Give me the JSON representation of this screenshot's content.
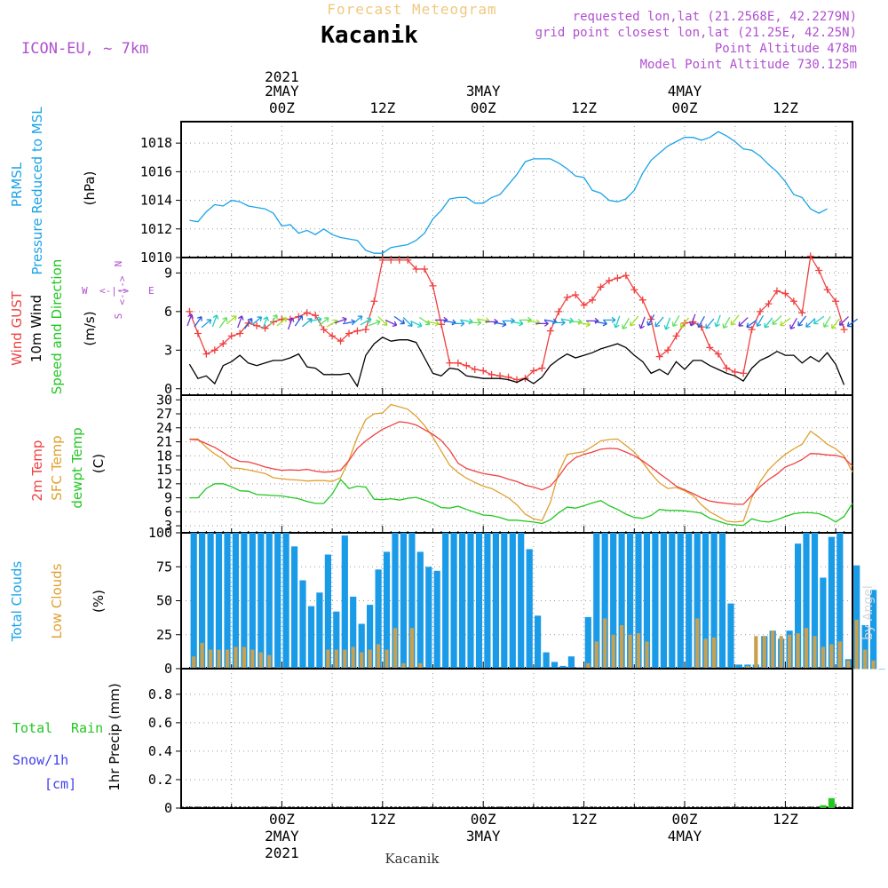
{
  "header": {
    "title": "Forecast Meteogram",
    "location": "Kacanik",
    "model": "ICON-EU, ~ 7km",
    "requested": "requested lon,lat (21.2568E, 42.2279N)",
    "gridpoint": "grid point closest lon,lat (21.25E, 42.25N)",
    "point_alt": "Point Altitude 478m",
    "model_alt": "Model Point Altitude 730.125m",
    "footer": "Kacanik",
    "credit": "by Angel"
  },
  "time_axis": {
    "top_ticks": [
      {
        "hour": 0,
        "label": "00Z",
        "date": "2MAY",
        "year": "2021"
      },
      {
        "hour": 12,
        "label": "12Z",
        "date": "",
        "year": ""
      },
      {
        "hour": 24,
        "label": "00Z",
        "date": "3MAY",
        "year": ""
      },
      {
        "hour": 36,
        "label": "12Z",
        "date": "",
        "year": ""
      },
      {
        "hour": 48,
        "label": "00Z",
        "date": "4MAY",
        "year": ""
      },
      {
        "hour": 60,
        "label": "12Z",
        "date": "",
        "year": ""
      }
    ],
    "bottom_ticks": [
      {
        "hour": 0,
        "label": "00Z",
        "date": "2MAY",
        "year": "2021"
      },
      {
        "hour": 12,
        "label": "12Z",
        "date": "",
        "year": ""
      },
      {
        "hour": 24,
        "label": "00Z",
        "date": "3MAY",
        "year": ""
      },
      {
        "hour": 36,
        "label": "12Z",
        "date": "",
        "year": ""
      },
      {
        "hour": 48,
        "label": "00Z",
        "date": "4MAY",
        "year": ""
      },
      {
        "hour": 60,
        "label": "12Z",
        "date": "",
        "year": ""
      }
    ]
  },
  "colors": {
    "pressure": "#1aa3e8",
    "gust": "#f04040",
    "wind": "#000000",
    "temp": "#f04040",
    "sfc": "#e0a030",
    "dewpt": "#20c820",
    "cloud_total": "#1a9be8",
    "cloud_low": "#c8a050",
    "rain": "#20c820",
    "snow": "#4040f0",
    "purple": "#b050d0",
    "title": "#f0c880"
  },
  "chart_data": [
    {
      "type": "line",
      "name": "PRMSL",
      "ylabel_lines": [
        "PRMSL",
        "Pressure Reduced to MSL"
      ],
      "unit": "(hPa)",
      "ylim": [
        1010,
        1019.5
      ],
      "yticks": [
        1010,
        1012,
        1014,
        1016,
        1018
      ],
      "x_start": -11,
      "x_step": 1,
      "series": [
        {
          "name": "PRMSL",
          "values": [
            1012.6,
            1012.5,
            1013.2,
            1013.7,
            1013.6,
            1014.0,
            1013.9,
            1013.6,
            1013.5,
            1013.4,
            1013.1,
            1012.2,
            1012.3,
            1011.7,
            1011.9,
            1011.6,
            1012.0,
            1011.6,
            1011.4,
            1011.3,
            1011.2,
            1010.5,
            1010.3,
            1010.3,
            1010.7,
            1010.8,
            1010.9,
            1011.2,
            1011.7,
            1012.7,
            1013.3,
            1014.1,
            1014.2,
            1014.2,
            1013.8,
            1013.8,
            1014.2,
            1014.4,
            1015.1,
            1015.8,
            1016.7,
            1016.9,
            1016.9,
            1016.9,
            1016.6,
            1016.2,
            1015.7,
            1015.6,
            1014.7,
            1014.5,
            1014.0,
            1013.9,
            1014.1,
            1014.7,
            1015.9,
            1016.8,
            1017.3,
            1017.8,
            1018.1,
            1018.4,
            1018.4,
            1018.2,
            1018.4,
            1018.8,
            1018.5,
            1018.1,
            1017.6,
            1017.5,
            1017.1,
            1016.5,
            1016.0,
            1015.3,
            1014.4,
            1014.2,
            1013.4,
            1013.1,
            1013.4
          ]
        }
      ]
    },
    {
      "type": "line",
      "name": "Wind",
      "ylabel_lines": [
        "Wind GUST",
        "10m Wind",
        "Speed and Direction"
      ],
      "unit": "(m/s)",
      "compass": {
        "w": "W",
        "e": "E",
        "n": "N",
        "s": "S"
      },
      "ylim": [
        -0.5,
        10.2
      ],
      "yticks": [
        0,
        3,
        6,
        9
      ],
      "x_start": -11,
      "x_step": 1,
      "series": [
        {
          "name": "Wind GUST",
          "values": [
            6.0,
            4.3,
            2.7,
            3.0,
            3.5,
            4.1,
            4.3,
            5.1,
            4.9,
            4.7,
            5.2,
            5.4,
            5.4,
            5.6,
            5.9,
            5.7,
            4.6,
            4.1,
            3.7,
            4.3,
            4.5,
            4.6,
            6.8,
            10.0,
            10.0,
            10.0,
            10.0,
            9.3,
            9.3,
            8.0,
            5.0,
            2.0,
            2.0,
            1.8,
            1.5,
            1.4,
            1.1,
            1.0,
            0.9,
            0.7,
            0.8,
            1.4,
            1.6,
            4.5,
            6.0,
            7.1,
            7.3,
            6.5,
            6.9,
            7.9,
            8.4,
            8.6,
            8.8,
            7.7,
            6.9,
            5.4,
            2.5,
            3.0,
            4.1,
            5.1,
            5.2,
            4.8,
            3.2,
            2.7,
            1.6,
            1.3,
            1.2,
            4.6,
            6.0,
            6.6,
            7.6,
            7.4,
            6.8,
            5.9,
            10.3,
            9.2,
            7.7,
            6.8,
            4.6
          ]
        },
        {
          "name": "10m Wind",
          "values": [
            1.9,
            0.8,
            1.0,
            0.4,
            1.8,
            2.1,
            2.6,
            2.0,
            1.8,
            2.0,
            2.2,
            2.2,
            2.4,
            2.7,
            1.7,
            1.6,
            1.1,
            1.1,
            1.1,
            1.2,
            0.2,
            2.6,
            3.5,
            4.0,
            3.7,
            3.8,
            3.8,
            3.6,
            2.4,
            1.2,
            1.0,
            1.6,
            1.5,
            1.0,
            0.9,
            0.8,
            0.8,
            0.8,
            0.7,
            0.5,
            0.8,
            0.4,
            0.9,
            1.8,
            2.3,
            2.7,
            2.4,
            2.6,
            2.8,
            3.1,
            3.3,
            3.5,
            3.2,
            2.6,
            2.1,
            1.2,
            1.5,
            1.1,
            2.1,
            1.5,
            2.2,
            2.2,
            1.8,
            1.5,
            1.2,
            1.0,
            0.6,
            1.6,
            2.2,
            2.5,
            2.9,
            2.6,
            2.6,
            2.0,
            2.5,
            2.1,
            2.8,
            1.9,
            0.3
          ]
        }
      ]
    },
    {
      "type": "line",
      "name": "Temperature",
      "ylabel_lines": [
        "2m Temp",
        "SFC Temp",
        "dewpt Temp"
      ],
      "unit": "(C)",
      "ylim": [
        1.5,
        31
      ],
      "yticks": [
        3,
        6,
        9,
        12,
        15,
        18,
        21,
        24,
        27,
        30
      ],
      "x_start": -11,
      "x_step": 1,
      "series": [
        {
          "name": "2m Temp",
          "values": [
            21.5,
            21.4,
            20.6,
            19.8,
            18.7,
            17.6,
            16.8,
            16.7,
            16.2,
            15.6,
            15.2,
            14.9,
            15.0,
            14.9,
            15.1,
            14.7,
            14.5,
            14.6,
            14.9,
            17.0,
            19.6,
            21.2,
            22.5,
            23.7,
            24.5,
            25.3,
            25.1,
            24.6,
            23.6,
            22.6,
            21.3,
            19.2,
            16.4,
            15.3,
            14.7,
            14.2,
            13.9,
            13.6,
            13.0,
            12.5,
            11.7,
            11.3,
            10.7,
            11.5,
            13.6,
            16.1,
            17.6,
            18.3,
            18.8,
            19.4,
            19.6,
            19.5,
            18.8,
            18.0,
            16.9,
            15.6,
            14.2,
            12.9,
            11.5,
            10.7,
            9.9,
            9.0,
            8.3,
            8.0,
            7.8,
            7.6,
            7.6,
            9.5,
            11.4,
            12.9,
            14.1,
            15.6,
            16.3,
            17.2,
            18.5,
            18.4,
            18.2,
            18.1,
            17.6,
            15.8
          ]
        },
        {
          "name": "SFC Temp",
          "values": [
            21.6,
            21.6,
            19.8,
            18.4,
            17.3,
            15.4,
            15.3,
            15.0,
            14.6,
            14.2,
            13.3,
            13.1,
            12.9,
            12.8,
            12.6,
            12.7,
            12.7,
            12.5,
            13.3,
            17.1,
            22.0,
            25.8,
            27.0,
            27.2,
            29.0,
            28.5,
            28.0,
            26.5,
            24.5,
            22.0,
            19.0,
            16.0,
            14.4,
            13.2,
            12.3,
            11.5,
            11.0,
            10.0,
            9.0,
            7.5,
            5.5,
            4.5,
            4.1,
            8.0,
            14.5,
            18.3,
            18.6,
            18.9,
            20.0,
            21.2,
            21.5,
            21.6,
            20.2,
            18.8,
            16.6,
            14.2,
            12.2,
            11.0,
            11.2,
            10.5,
            9.5,
            7.5,
            6.0,
            5.0,
            4.0,
            3.8,
            4.0,
            9.0,
            12.5,
            15.0,
            16.8,
            18.3,
            19.5,
            20.5,
            23.3,
            22.0,
            20.5,
            19.5,
            18.0,
            14.5
          ]
        },
        {
          "name": "dewpt Temp",
          "values": [
            9.0,
            9.0,
            11.0,
            12.0,
            12.0,
            11.4,
            10.5,
            10.4,
            9.7,
            9.6,
            9.5,
            9.4,
            9.1,
            8.8,
            8.2,
            7.8,
            7.8,
            9.8,
            12.9,
            11.0,
            11.5,
            11.3,
            8.7,
            8.6,
            8.8,
            8.5,
            8.9,
            9.1,
            8.5,
            7.8,
            6.9,
            6.8,
            7.2,
            6.5,
            5.9,
            5.3,
            5.2,
            4.8,
            4.2,
            4.2,
            4.0,
            3.8,
            3.5,
            4.3,
            5.8,
            7.0,
            6.8,
            7.3,
            7.9,
            8.4,
            7.3,
            6.5,
            5.5,
            4.8,
            4.6,
            5.2,
            6.5,
            6.3,
            6.3,
            6.2,
            6.0,
            5.7,
            4.6,
            4.0,
            3.4,
            3.2,
            3.1,
            4.5,
            4.0,
            3.8,
            4.3,
            5.0,
            5.6,
            5.8,
            5.8,
            5.6,
            4.9,
            3.8,
            5.0,
            7.8
          ]
        }
      ]
    },
    {
      "type": "bar",
      "name": "Clouds",
      "ylabel_lines": [
        "Total Clouds",
        "Low Clouds"
      ],
      "unit": "(%)",
      "ylim": [
        0,
        100
      ],
      "yticks": [
        0,
        25,
        50,
        75,
        100
      ],
      "x_start": -10.5,
      "x_step": 1,
      "series": [
        {
          "name": "Total Clouds",
          "values": [
            100,
            100,
            100,
            100,
            100,
            100,
            100,
            100,
            100,
            100,
            100,
            100,
            90,
            65,
            46,
            56,
            84,
            42,
            98,
            53,
            33,
            47,
            73,
            86,
            100,
            100,
            100,
            86,
            75,
            72,
            100,
            100,
            100,
            100,
            100,
            100,
            100,
            100,
            100,
            100,
            88,
            39,
            12,
            5,
            2,
            9,
            1,
            38,
            100,
            100,
            100,
            100,
            100,
            100,
            100,
            100,
            100,
            100,
            100,
            100,
            100,
            100,
            100,
            100,
            48,
            3,
            3,
            3,
            24,
            28,
            22,
            28,
            92,
            100,
            100,
            67,
            97,
            100,
            7,
            76,
            32,
            58,
            0
          ]
        },
        {
          "name": "Low Clouds",
          "values": [
            9,
            19,
            14,
            14,
            14,
            16,
            16,
            14,
            12,
            10,
            1,
            0,
            0,
            0,
            0,
            0,
            14,
            14,
            14,
            16,
            12,
            14,
            18,
            14,
            30,
            4,
            30,
            4,
            0,
            0,
            0,
            0,
            0,
            0,
            0,
            0,
            0,
            0,
            0,
            0,
            0,
            0,
            0,
            0,
            0,
            0,
            0,
            4,
            20,
            37,
            25,
            32,
            25,
            26,
            20,
            0,
            0,
            0,
            0,
            0,
            37,
            22,
            23,
            0,
            0,
            0,
            2,
            24,
            24,
            28,
            24,
            25,
            26,
            30,
            24,
            16,
            18,
            20,
            6,
            36,
            14,
            6,
            0
          ]
        }
      ]
    },
    {
      "type": "bar",
      "name": "Precipitation",
      "ylabel_lines": [
        "1hr Precip (mm)"
      ],
      "legend": {
        "rain_total": "Total",
        "rain": "Rain",
        "snow": "Snow/1h",
        "snow_unit": "[cm]"
      },
      "ylim": [
        0,
        0.98
      ],
      "yticks": [
        0,
        0.2,
        0.4,
        0.6,
        0.8
      ],
      "series": [
        {
          "name": "Rain",
          "points": [
            {
              "x": 64.5,
              "y": 0.02
            },
            {
              "x": 65.5,
              "y": 0.07
            }
          ]
        }
      ]
    }
  ]
}
